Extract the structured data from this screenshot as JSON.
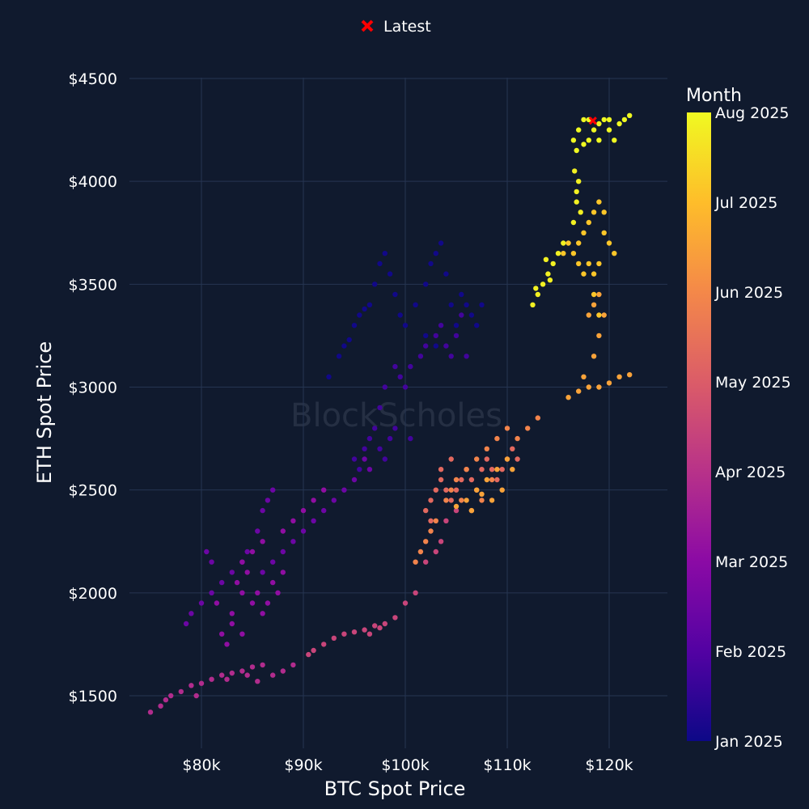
{
  "chart_data": {
    "type": "scatter",
    "title": "",
    "xlabel": "BTC Spot Price",
    "ylabel": "ETH Spot Price",
    "xlim": [
      73000,
      126000
    ],
    "ylim": [
      1300,
      4550
    ],
    "x_ticks": [
      80000,
      90000,
      100000,
      110000,
      120000
    ],
    "x_tick_labels": [
      "$80k",
      "$90k",
      "$100k",
      "$110k",
      "$120k"
    ],
    "y_ticks": [
      1500,
      2000,
      2500,
      3000,
      3500,
      4000,
      4500
    ],
    "y_tick_labels": [
      "$1500",
      "$2000",
      "$2500",
      "$3000",
      "$3500",
      "$4000",
      "$4500"
    ],
    "grid": true,
    "watermark": "BlockScholes",
    "colorbar": {
      "title": "Month",
      "labels": [
        "Jan 2025",
        "Feb 2025",
        "Mar 2025",
        "Apr 2025",
        "May 2025",
        "Jun 2025",
        "Jul 2025",
        "Aug 2025"
      ],
      "colors": [
        "#0d0887",
        "#5302a3",
        "#8b0aa5",
        "#b83289",
        "#db5c68",
        "#f48849",
        "#febd2a",
        "#f0f921"
      ]
    },
    "legend": {
      "label": "Latest",
      "position": "top-center",
      "marker_color": "#ff0000"
    },
    "latest": {
      "x": 118400,
      "y": 4295,
      "month": 7.45
    },
    "series": [
      {
        "month": 0.05,
        "points": [
          [
            92500,
            3050
          ],
          [
            93500,
            3150
          ],
          [
            94000,
            3200
          ],
          [
            95000,
            3300
          ],
          [
            95500,
            3350
          ],
          [
            96500,
            3400
          ],
          [
            97000,
            3500
          ],
          [
            97500,
            3600
          ],
          [
            98000,
            3650
          ],
          [
            98500,
            3550
          ],
          [
            99000,
            3450
          ],
          [
            99500,
            3350
          ],
          [
            100000,
            3300
          ],
          [
            101000,
            3400
          ],
          [
            102000,
            3500
          ],
          [
            102500,
            3600
          ],
          [
            103000,
            3650
          ],
          [
            103500,
            3700
          ],
          [
            104000,
            3550
          ],
          [
            104500,
            3400
          ],
          [
            105000,
            3300
          ],
          [
            106000,
            3400
          ],
          [
            106500,
            3350
          ],
          [
            107000,
            3300
          ],
          [
            107500,
            3400
          ],
          [
            105500,
            3450
          ],
          [
            103000,
            3200
          ],
          [
            102000,
            3250
          ],
          [
            96000,
            3380
          ],
          [
            94500,
            3230
          ]
        ]
      },
      {
        "month": 0.75,
        "points": [
          [
            103000,
            3250
          ],
          [
            103500,
            3300
          ],
          [
            104000,
            3200
          ],
          [
            104500,
            3150
          ],
          [
            105000,
            3250
          ],
          [
            105500,
            3350
          ],
          [
            106000,
            3150
          ],
          [
            102000,
            3200
          ],
          [
            101500,
            3150
          ],
          [
            100500,
            3100
          ],
          [
            99500,
            3050
          ],
          [
            99000,
            3100
          ],
          [
            100000,
            3000
          ],
          [
            98000,
            3000
          ],
          [
            95000,
            2650
          ],
          [
            96000,
            2700
          ],
          [
            96500,
            2750
          ],
          [
            97000,
            2800
          ],
          [
            97500,
            2700
          ],
          [
            98000,
            2650
          ],
          [
            98500,
            2750
          ],
          [
            99000,
            2800
          ],
          [
            95500,
            2600
          ],
          [
            100500,
            2750
          ],
          [
            97500,
            2900
          ]
        ]
      },
      {
        "month": 1.45,
        "points": [
          [
            96000,
            2650
          ],
          [
            96500,
            2600
          ],
          [
            95000,
            2550
          ],
          [
            94000,
            2500
          ],
          [
            93000,
            2450
          ],
          [
            92000,
            2400
          ],
          [
            91000,
            2350
          ],
          [
            90000,
            2300
          ],
          [
            89000,
            2250
          ],
          [
            88000,
            2200
          ],
          [
            87000,
            2150
          ],
          [
            86000,
            2100
          ],
          [
            85500,
            2300
          ],
          [
            86000,
            2400
          ],
          [
            86500,
            2450
          ],
          [
            87000,
            2500
          ],
          [
            84500,
            2200
          ],
          [
            84000,
            2150
          ],
          [
            83000,
            2100
          ],
          [
            82000,
            2050
          ],
          [
            81000,
            2000
          ],
          [
            80000,
            1950
          ],
          [
            79000,
            1900
          ],
          [
            78500,
            1850
          ],
          [
            80500,
            2200
          ],
          [
            81000,
            2150
          ]
        ]
      },
      {
        "month": 2.1,
        "points": [
          [
            88000,
            2300
          ],
          [
            89000,
            2350
          ],
          [
            90000,
            2400
          ],
          [
            91000,
            2450
          ],
          [
            92000,
            2500
          ],
          [
            86000,
            2250
          ],
          [
            85000,
            2200
          ],
          [
            84000,
            2150
          ],
          [
            83500,
            2050
          ],
          [
            84000,
            2000
          ],
          [
            85000,
            1950
          ],
          [
            86000,
            1900
          ],
          [
            87000,
            2050
          ],
          [
            88000,
            2100
          ],
          [
            82000,
            1800
          ],
          [
            83000,
            1850
          ],
          [
            81500,
            1950
          ],
          [
            83000,
            1900
          ],
          [
            84500,
            2100
          ],
          [
            85500,
            2000
          ],
          [
            86500,
            1950
          ],
          [
            87500,
            2000
          ],
          [
            82500,
            1750
          ],
          [
            84000,
            1800
          ]
        ]
      },
      {
        "month": 2.85,
        "points": [
          [
            76000,
            1450
          ],
          [
            77000,
            1500
          ],
          [
            78000,
            1520
          ],
          [
            79000,
            1550
          ],
          [
            80000,
            1560
          ],
          [
            81000,
            1580
          ],
          [
            82000,
            1600
          ],
          [
            83000,
            1610
          ],
          [
            84000,
            1620
          ],
          [
            85000,
            1640
          ],
          [
            86000,
            1650
          ],
          [
            87000,
            1600
          ],
          [
            88000,
            1620
          ],
          [
            89000,
            1650
          ],
          [
            75000,
            1420
          ],
          [
            76500,
            1480
          ],
          [
            79500,
            1500
          ],
          [
            82500,
            1580
          ],
          [
            84500,
            1600
          ],
          [
            85500,
            1570
          ]
        ]
      },
      {
        "month": 3.45,
        "points": [
          [
            92000,
            1750
          ],
          [
            93000,
            1780
          ],
          [
            94000,
            1800
          ],
          [
            95000,
            1810
          ],
          [
            96000,
            1820
          ],
          [
            97000,
            1840
          ],
          [
            98000,
            1850
          ],
          [
            99000,
            1880
          ],
          [
            100000,
            1950
          ],
          [
            101000,
            2000
          ],
          [
            102000,
            2150
          ],
          [
            103000,
            2200
          ],
          [
            104000,
            2350
          ],
          [
            105000,
            2400
          ],
          [
            91000,
            1720
          ],
          [
            90500,
            1700
          ],
          [
            96500,
            1800
          ],
          [
            97500,
            1830
          ],
          [
            103500,
            2250
          ]
        ]
      },
      {
        "month": 4.3,
        "points": [
          [
            102000,
            2400
          ],
          [
            102500,
            2450
          ],
          [
            103000,
            2500
          ],
          [
            103500,
            2550
          ],
          [
            104000,
            2500
          ],
          [
            104500,
            2450
          ],
          [
            105000,
            2500
          ],
          [
            105500,
            2550
          ],
          [
            106000,
            2600
          ],
          [
            106500,
            2550
          ],
          [
            107000,
            2500
          ],
          [
            107500,
            2600
          ],
          [
            108000,
            2650
          ],
          [
            108500,
            2600
          ],
          [
            109000,
            2550
          ],
          [
            109500,
            2600
          ],
          [
            110000,
            2650
          ],
          [
            110500,
            2700
          ],
          [
            111000,
            2650
          ],
          [
            102500,
            2350
          ],
          [
            103500,
            2600
          ],
          [
            104500,
            2650
          ]
        ]
      },
      {
        "month": 4.9,
        "points": [
          [
            101000,
            2150
          ],
          [
            101500,
            2200
          ],
          [
            102000,
            2250
          ],
          [
            102500,
            2300
          ],
          [
            103000,
            2350
          ],
          [
            104000,
            2450
          ],
          [
            105000,
            2550
          ],
          [
            106000,
            2600
          ],
          [
            107000,
            2650
          ],
          [
            108000,
            2700
          ],
          [
            109000,
            2750
          ],
          [
            110000,
            2800
          ],
          [
            111000,
            2750
          ],
          [
            112000,
            2800
          ],
          [
            113000,
            2850
          ],
          [
            104500,
            2500
          ],
          [
            105500,
            2450
          ],
          [
            106500,
            2400
          ],
          [
            107500,
            2450
          ],
          [
            108500,
            2550
          ]
        ]
      },
      {
        "month": 5.5,
        "points": [
          [
            105000,
            2420
          ],
          [
            106000,
            2450
          ],
          [
            107000,
            2500
          ],
          [
            108000,
            2550
          ],
          [
            109000,
            2600
          ],
          [
            110000,
            2650
          ],
          [
            108500,
            2450
          ],
          [
            109500,
            2500
          ],
          [
            110500,
            2600
          ],
          [
            106500,
            2400
          ],
          [
            107500,
            2480
          ],
          [
            116000,
            2950
          ],
          [
            117000,
            2980
          ],
          [
            118000,
            3000
          ],
          [
            119000,
            3000
          ],
          [
            120000,
            3020
          ],
          [
            121000,
            3050
          ],
          [
            122000,
            3060
          ],
          [
            117500,
            3050
          ],
          [
            118500,
            3150
          ],
          [
            119000,
            3250
          ],
          [
            118000,
            3350
          ],
          [
            118500,
            3400
          ],
          [
            119000,
            3450
          ],
          [
            119500,
            3350
          ]
        ]
      },
      {
        "month": 6.15,
        "points": [
          [
            116500,
            3650
          ],
          [
            117000,
            3700
          ],
          [
            117500,
            3750
          ],
          [
            118000,
            3800
          ],
          [
            118500,
            3850
          ],
          [
            119000,
            3900
          ],
          [
            119500,
            3750
          ],
          [
            120000,
            3700
          ],
          [
            118000,
            3600
          ],
          [
            118500,
            3550
          ],
          [
            119000,
            3600
          ],
          [
            116000,
            3700
          ],
          [
            115500,
            3650
          ],
          [
            117500,
            3550
          ],
          [
            119500,
            3850
          ],
          [
            120500,
            3650
          ],
          [
            118500,
            3450
          ],
          [
            119000,
            3350
          ],
          [
            117000,
            3600
          ]
        ]
      },
      {
        "month": 6.85,
        "points": [
          [
            112500,
            3400
          ],
          [
            113000,
            3450
          ],
          [
            113500,
            3500
          ],
          [
            114000,
            3550
          ],
          [
            114500,
            3600
          ],
          [
            115000,
            3650
          ],
          [
            115500,
            3700
          ],
          [
            113800,
            3620
          ],
          [
            114200,
            3520
          ],
          [
            112800,
            3480
          ],
          [
            116500,
            3800
          ],
          [
            116800,
            3900
          ],
          [
            117000,
            4000
          ],
          [
            116600,
            4050
          ],
          [
            117200,
            3850
          ],
          [
            116800,
            3950
          ]
        ]
      },
      {
        "month": 7.25,
        "points": [
          [
            116500,
            4200
          ],
          [
            117000,
            4250
          ],
          [
            117500,
            4300
          ],
          [
            118000,
            4200
          ],
          [
            118500,
            4250
          ],
          [
            119000,
            4280
          ],
          [
            119500,
            4300
          ],
          [
            120000,
            4250
          ],
          [
            120500,
            4200
          ],
          [
            121000,
            4280
          ],
          [
            121500,
            4300
          ],
          [
            122000,
            4320
          ],
          [
            116800,
            4150
          ],
          [
            117500,
            4180
          ],
          [
            119000,
            4200
          ],
          [
            120000,
            4300
          ],
          [
            118000,
            4300
          ]
        ]
      }
    ]
  }
}
